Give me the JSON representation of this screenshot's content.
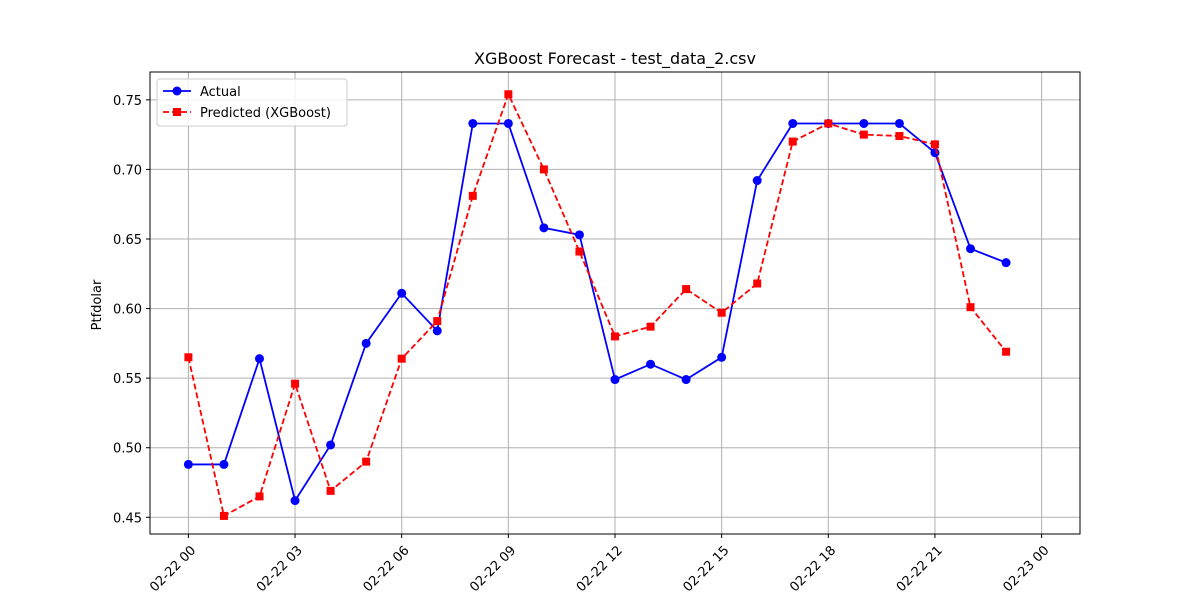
{
  "chart_data": {
    "type": "line",
    "title": "XGBoost Forecast - test_data_2.csv",
    "xlabel": "",
    "ylabel": "Ptfdolar",
    "x": [
      "02-22 00:00",
      "02-22 01:00",
      "02-22 02:00",
      "02-22 03:00",
      "02-22 04:00",
      "02-22 05:00",
      "02-22 06:00",
      "02-22 07:00",
      "02-22 08:00",
      "02-22 09:00",
      "02-22 10:00",
      "02-22 11:00",
      "02-22 12:00",
      "02-22 13:00",
      "02-22 14:00",
      "02-22 15:00",
      "02-22 16:00",
      "02-22 17:00",
      "02-22 18:00",
      "02-22 19:00",
      "02-22 20:00",
      "02-22 21:00",
      "02-22 22:00",
      "02-22 23:00"
    ],
    "x_ticks": [
      "02-22 00",
      "02-22 03",
      "02-22 06",
      "02-22 09",
      "02-22 12",
      "02-22 15",
      "02-22 18",
      "02-22 21",
      "02-23 00"
    ],
    "ylim": [
      0.438,
      0.77
    ],
    "y_ticks": [
      "0.45",
      "0.50",
      "0.55",
      "0.60",
      "0.65",
      "0.70",
      "0.75"
    ],
    "grid": true,
    "legend_position": "top-left",
    "series": [
      {
        "name": "Actual",
        "color": "#0000ff",
        "style": "solid",
        "marker": "circle",
        "values": [
          0.488,
          0.488,
          0.564,
          0.462,
          0.502,
          0.575,
          0.611,
          0.584,
          0.733,
          0.733,
          0.658,
          0.653,
          0.549,
          0.56,
          0.549,
          0.565,
          0.692,
          0.733,
          0.733,
          0.733,
          0.733,
          0.712,
          0.643,
          0.633
        ]
      },
      {
        "name": "Predicted (XGBoost)",
        "color": "#ff0000",
        "style": "dashed",
        "marker": "square",
        "values": [
          0.565,
          0.451,
          0.465,
          0.546,
          0.469,
          0.49,
          0.564,
          0.591,
          0.681,
          0.754,
          0.7,
          0.641,
          0.58,
          0.587,
          0.614,
          0.597,
          0.618,
          0.72,
          0.733,
          0.725,
          0.724,
          0.718,
          0.601,
          0.569
        ]
      }
    ]
  }
}
